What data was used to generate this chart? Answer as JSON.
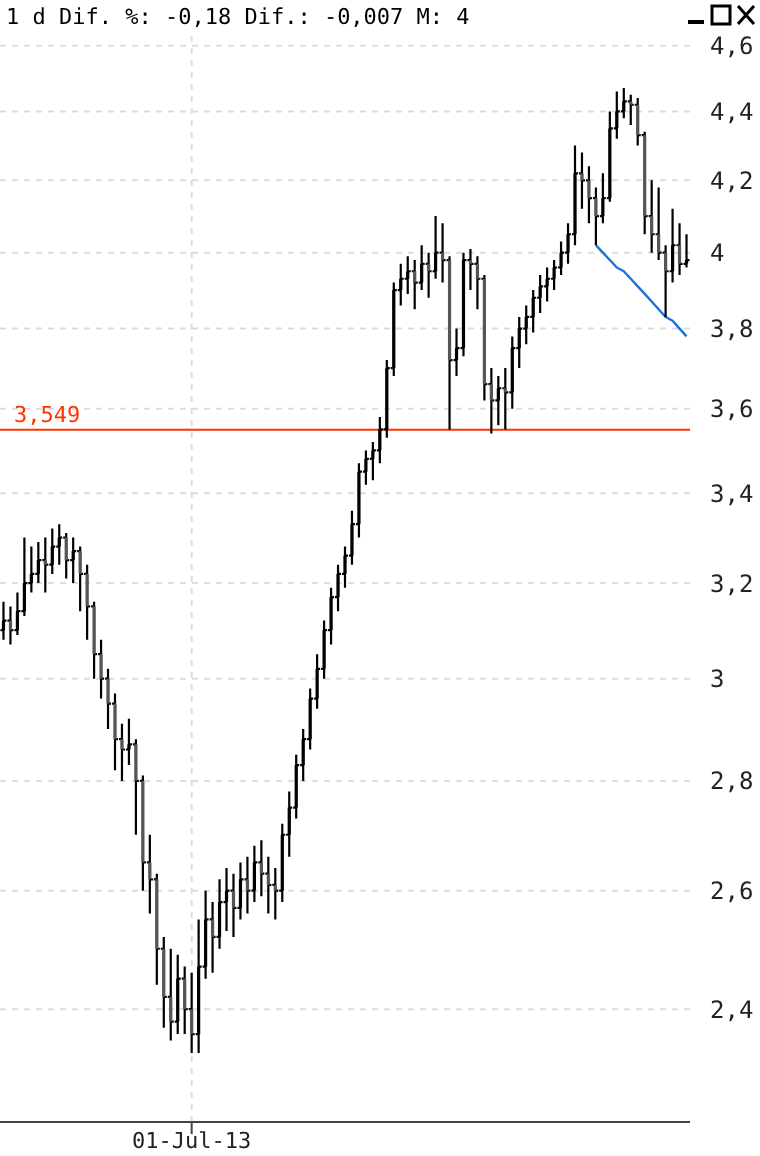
{
  "chart_data": {
    "type": "candlestick",
    "title": "1 d Dif. %: -0,18 Dif.: -0,007 M: 4",
    "categories": [
      null,
      null,
      null,
      null,
      null,
      null,
      null,
      null,
      null,
      null,
      null,
      null,
      null,
      null,
      null,
      null,
      null,
      null,
      null,
      null,
      null,
      null,
      null,
      null,
      null,
      null,
      null,
      "01-Jul-13",
      null,
      null,
      null,
      null,
      null,
      null,
      null,
      null,
      null,
      null,
      null,
      null,
      null,
      null,
      null,
      null,
      null,
      null,
      null,
      null,
      null,
      null,
      null,
      null,
      null,
      null,
      null,
      null,
      null,
      null,
      null,
      null,
      null,
      null,
      null,
      null,
      null,
      null,
      null,
      null,
      null,
      null,
      null,
      null,
      null,
      null,
      null,
      null,
      null,
      null,
      null,
      null,
      null,
      null,
      null,
      null,
      null,
      null,
      null,
      null,
      null,
      null,
      null,
      null,
      null,
      null,
      null,
      null,
      null,
      null,
      null
    ],
    "ohlc": [
      [
        3.1,
        3.16,
        3.08,
        3.12
      ],
      [
        3.12,
        3.15,
        3.07,
        3.1
      ],
      [
        3.1,
        3.18,
        3.09,
        3.14
      ],
      [
        3.14,
        3.3,
        3.13,
        3.2
      ],
      [
        3.2,
        3.28,
        3.18,
        3.22
      ],
      [
        3.22,
        3.29,
        3.2,
        3.25
      ],
      [
        3.25,
        3.3,
        3.18,
        3.24
      ],
      [
        3.24,
        3.32,
        3.22,
        3.28
      ],
      [
        3.28,
        3.33,
        3.24,
        3.3
      ],
      [
        3.3,
        3.31,
        3.21,
        3.25
      ],
      [
        3.25,
        3.3,
        3.2,
        3.27
      ],
      [
        3.27,
        3.28,
        3.14,
        3.22
      ],
      [
        3.22,
        3.24,
        3.08,
        3.15
      ],
      [
        3.15,
        3.16,
        3.0,
        3.05
      ],
      [
        3.05,
        3.08,
        2.96,
        3.0
      ],
      [
        3.0,
        3.02,
        2.9,
        2.95
      ],
      [
        2.95,
        2.97,
        2.82,
        2.88
      ],
      [
        2.88,
        2.91,
        2.8,
        2.86
      ],
      [
        2.86,
        2.92,
        2.83,
        2.87
      ],
      [
        2.87,
        2.88,
        2.7,
        2.8
      ],
      [
        2.8,
        2.81,
        2.6,
        2.65
      ],
      [
        2.65,
        2.7,
        2.56,
        2.62
      ],
      [
        2.62,
        2.63,
        2.44,
        2.5
      ],
      [
        2.5,
        2.52,
        2.37,
        2.42
      ],
      [
        2.42,
        2.5,
        2.35,
        2.38
      ],
      [
        2.38,
        2.49,
        2.36,
        2.45
      ],
      [
        2.45,
        2.47,
        2.36,
        2.4
      ],
      [
        2.4,
        2.46,
        2.33,
        2.36
      ],
      [
        2.36,
        2.55,
        2.33,
        2.47
      ],
      [
        2.47,
        2.6,
        2.45,
        2.55
      ],
      [
        2.55,
        2.58,
        2.46,
        2.52
      ],
      [
        2.52,
        2.62,
        2.5,
        2.58
      ],
      [
        2.58,
        2.64,
        2.53,
        2.6
      ],
      [
        2.6,
        2.63,
        2.52,
        2.57
      ],
      [
        2.57,
        2.65,
        2.55,
        2.62
      ],
      [
        2.62,
        2.66,
        2.56,
        2.6
      ],
      [
        2.6,
        2.68,
        2.58,
        2.65
      ],
      [
        2.65,
        2.69,
        2.59,
        2.63
      ],
      [
        2.63,
        2.66,
        2.56,
        2.61
      ],
      [
        2.61,
        2.64,
        2.55,
        2.6
      ],
      [
        2.6,
        2.72,
        2.58,
        2.7
      ],
      [
        2.7,
        2.78,
        2.66,
        2.75
      ],
      [
        2.75,
        2.85,
        2.73,
        2.83
      ],
      [
        2.83,
        2.9,
        2.8,
        2.88
      ],
      [
        2.88,
        2.98,
        2.86,
        2.96
      ],
      [
        2.96,
        3.05,
        2.94,
        3.02
      ],
      [
        3.02,
        3.12,
        3.0,
        3.1
      ],
      [
        3.1,
        3.19,
        3.07,
        3.17
      ],
      [
        3.17,
        3.24,
        3.14,
        3.22
      ],
      [
        3.22,
        3.28,
        3.19,
        3.26
      ],
      [
        3.26,
        3.36,
        3.24,
        3.33
      ],
      [
        3.33,
        3.47,
        3.3,
        3.45
      ],
      [
        3.45,
        3.5,
        3.42,
        3.48
      ],
      [
        3.48,
        3.52,
        3.43,
        3.5
      ],
      [
        3.5,
        3.58,
        3.47,
        3.55
      ],
      [
        3.55,
        3.72,
        3.53,
        3.7
      ],
      [
        3.7,
        3.92,
        3.68,
        3.9
      ],
      [
        3.9,
        3.97,
        3.86,
        3.93
      ],
      [
        3.93,
        3.99,
        3.89,
        3.95
      ],
      [
        3.95,
        3.98,
        3.85,
        3.92
      ],
      [
        3.92,
        4.02,
        3.9,
        3.97
      ],
      [
        3.97,
        4.0,
        3.88,
        3.95
      ],
      [
        3.95,
        4.1,
        3.93,
        4.0
      ],
      [
        4.0,
        4.08,
        3.92,
        3.98
      ],
      [
        3.98,
        3.99,
        3.55,
        3.72
      ],
      [
        3.72,
        3.8,
        3.68,
        3.75
      ],
      [
        3.75,
        4.0,
        3.73,
        3.98
      ],
      [
        3.98,
        4.01,
        3.9,
        3.97
      ],
      [
        3.97,
        3.99,
        3.85,
        3.93
      ],
      [
        3.93,
        3.94,
        3.62,
        3.66
      ],
      [
        3.66,
        3.7,
        3.54,
        3.62
      ],
      [
        3.62,
        3.68,
        3.56,
        3.65
      ],
      [
        3.65,
        3.7,
        3.55,
        3.64
      ],
      [
        3.64,
        3.78,
        3.6,
        3.75
      ],
      [
        3.75,
        3.83,
        3.7,
        3.8
      ],
      [
        3.8,
        3.86,
        3.76,
        3.83
      ],
      [
        3.83,
        3.9,
        3.79,
        3.88
      ],
      [
        3.88,
        3.94,
        3.84,
        3.91
      ],
      [
        3.91,
        3.96,
        3.87,
        3.93
      ],
      [
        3.93,
        3.98,
        3.9,
        3.96
      ],
      [
        3.96,
        4.03,
        3.94,
        4.0
      ],
      [
        4.0,
        4.08,
        3.97,
        4.05
      ],
      [
        4.05,
        4.3,
        4.02,
        4.22
      ],
      [
        4.22,
        4.28,
        4.12,
        4.2
      ],
      [
        4.2,
        4.24,
        4.08,
        4.15
      ],
      [
        4.15,
        4.18,
        4.02,
        4.1
      ],
      [
        4.1,
        4.22,
        4.08,
        4.15
      ],
      [
        4.15,
        4.4,
        4.14,
        4.35
      ],
      [
        4.35,
        4.46,
        4.32,
        4.4
      ],
      [
        4.4,
        4.47,
        4.38,
        4.43
      ],
      [
        4.43,
        4.45,
        4.36,
        4.42
      ],
      [
        4.42,
        4.44,
        4.3,
        4.33
      ],
      [
        4.33,
        4.34,
        4.05,
        4.1
      ],
      [
        4.1,
        4.2,
        4.0,
        4.05
      ],
      [
        4.05,
        4.18,
        3.98,
        4.0
      ],
      [
        4.0,
        4.02,
        3.83,
        3.95
      ],
      [
        3.95,
        4.12,
        3.92,
        4.02
      ],
      [
        4.02,
        4.08,
        3.94,
        3.97
      ],
      [
        3.97,
        4.05,
        3.96,
        3.98
      ]
    ],
    "series": [
      {
        "type": "line",
        "color": "#1a73d9",
        "values": [
          null,
          null,
          null,
          null,
          null,
          null,
          null,
          null,
          null,
          null,
          null,
          null,
          null,
          null,
          null,
          null,
          null,
          null,
          null,
          null,
          null,
          null,
          null,
          null,
          null,
          null,
          null,
          null,
          null,
          null,
          null,
          null,
          null,
          null,
          null,
          null,
          null,
          null,
          null,
          null,
          null,
          null,
          null,
          null,
          null,
          null,
          null,
          null,
          null,
          null,
          null,
          null,
          null,
          null,
          null,
          null,
          null,
          null,
          null,
          null,
          null,
          null,
          null,
          null,
          null,
          null,
          null,
          null,
          null,
          null,
          null,
          null,
          null,
          null,
          null,
          null,
          null,
          null,
          null,
          null,
          null,
          null,
          null,
          null,
          null,
          4.02,
          4.0,
          3.98,
          3.96,
          3.95,
          3.93,
          3.91,
          3.89,
          3.87,
          3.85,
          3.83,
          3.82,
          3.8,
          3.78
        ]
      }
    ],
    "log": "y",
    "ylim": [
      2.224,
      4.63
    ],
    "yticks": [
      {
        "value": 2.4,
        "label": "2,4"
      },
      {
        "value": 2.6,
        "label": "2,6"
      },
      {
        "value": 2.8,
        "label": "2,8"
      },
      3,
      {
        "value": 3.2,
        "label": "3,2"
      },
      {
        "value": 3.4,
        "label": "3,4"
      },
      {
        "value": 3.6,
        "label": "3,6"
      },
      {
        "value": 3.8,
        "label": "3,8"
      },
      4,
      {
        "value": 4.2,
        "label": "4,2"
      },
      {
        "value": 4.4,
        "label": "4,4"
      },
      {
        "value": 4.6,
        "label": "4,6"
      }
    ],
    "grid": true,
    "ref_lines": [
      {
        "axis": "y",
        "value": 3.549,
        "label": "3,549",
        "color": "#ff3300"
      }
    ]
  }
}
